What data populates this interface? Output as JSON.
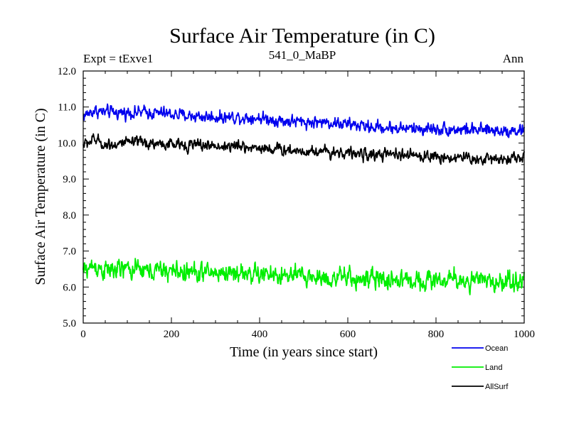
{
  "chart_data": {
    "type": "line",
    "title": "Surface Air Temperature (in C)",
    "subtitle_left": "Expt = tExve1",
    "subtitle_center": "541_0_MaBP",
    "subtitle_right": "Ann",
    "xlabel": "Time (in years since start)",
    "ylabel": "Surface Air Temperature (in C)",
    "xlim": [
      0,
      1000
    ],
    "ylim": [
      5.0,
      12.0
    ],
    "xticks": [
      0,
      200,
      400,
      600,
      800,
      1000
    ],
    "xtick_labels": [
      "0",
      "200",
      "400",
      "600",
      "800",
      "1000"
    ],
    "yticks": [
      5.0,
      6.0,
      7.0,
      8.0,
      9.0,
      10.0,
      11.0,
      12.0
    ],
    "ytick_labels": [
      "5.0",
      "6.0",
      "7.0",
      "8.0",
      "9.0",
      "10.0",
      "11.0",
      "12.0"
    ],
    "legend_position": "bottom-right-outside",
    "series": [
      {
        "name": "Ocean",
        "color": "#0000ee",
        "x": [
          0,
          25,
          50,
          100,
          150,
          200,
          250,
          300,
          350,
          400,
          450,
          500,
          550,
          600,
          650,
          700,
          750,
          800,
          850,
          900,
          950,
          1000
        ],
        "trend": [
          10.75,
          10.9,
          10.85,
          10.85,
          10.85,
          10.8,
          10.75,
          10.72,
          10.72,
          10.7,
          10.62,
          10.58,
          10.58,
          10.52,
          10.45,
          10.42,
          10.4,
          10.4,
          10.38,
          10.35,
          10.35,
          10.35
        ],
        "noise": 0.14
      },
      {
        "name": "Land",
        "color": "#00ee00",
        "x": [
          0,
          25,
          50,
          100,
          150,
          200,
          250,
          300,
          350,
          400,
          450,
          500,
          550,
          600,
          650,
          700,
          750,
          800,
          850,
          900,
          950,
          1000
        ],
        "trend": [
          6.45,
          6.6,
          6.45,
          6.5,
          6.45,
          6.45,
          6.4,
          6.4,
          6.4,
          6.35,
          6.3,
          6.3,
          6.25,
          6.25,
          6.2,
          6.2,
          6.2,
          6.2,
          6.2,
          6.15,
          6.15,
          6.2
        ],
        "noise": 0.22
      },
      {
        "name": "AllSurf",
        "color": "#000000",
        "x": [
          0,
          25,
          50,
          100,
          150,
          200,
          250,
          300,
          350,
          400,
          450,
          500,
          550,
          600,
          650,
          700,
          750,
          800,
          850,
          900,
          950,
          1000
        ],
        "trend": [
          9.95,
          10.1,
          9.95,
          10.0,
          10.0,
          9.95,
          9.95,
          9.92,
          9.9,
          9.87,
          9.82,
          9.78,
          9.78,
          9.72,
          9.67,
          9.67,
          9.65,
          9.62,
          9.6,
          9.55,
          9.58,
          9.6
        ],
        "noise": 0.13
      }
    ]
  }
}
